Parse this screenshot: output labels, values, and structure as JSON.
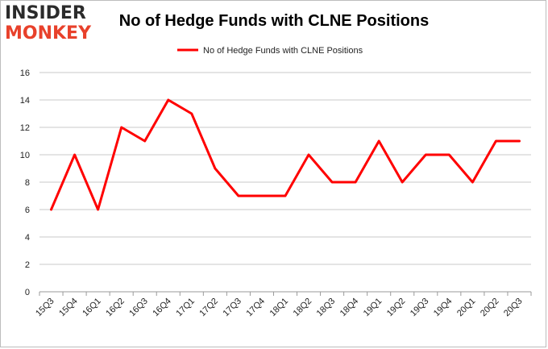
{
  "logo": {
    "line1": "INSIDER",
    "line2": "MONKEY"
  },
  "chart_data": {
    "type": "line",
    "title": "No of Hedge Funds with CLNE Positions",
    "xlabel": "",
    "ylabel": "",
    "categories": [
      "15Q3",
      "15Q4",
      "16Q1",
      "16Q2",
      "16Q3",
      "16Q4",
      "17Q1",
      "17Q2",
      "17Q3",
      "17Q4",
      "18Q1",
      "18Q2",
      "18Q3",
      "18Q4",
      "19Q1",
      "19Q2",
      "19Q3",
      "19Q4",
      "20Q1",
      "20Q2",
      "20Q3"
    ],
    "series": [
      {
        "name": "No of Hedge Funds with CLNE Positions",
        "values": [
          6,
          10,
          6,
          12,
          11,
          14,
          13,
          9,
          7,
          7,
          7,
          10,
          8,
          8,
          11,
          8,
          10,
          10,
          8,
          11,
          11
        ],
        "color": "#ff0000"
      }
    ],
    "ylim": [
      0,
      16
    ],
    "yticks": [
      0,
      2,
      4,
      6,
      8,
      10,
      12,
      14,
      16
    ],
    "grid": true,
    "legend_position": "top"
  }
}
